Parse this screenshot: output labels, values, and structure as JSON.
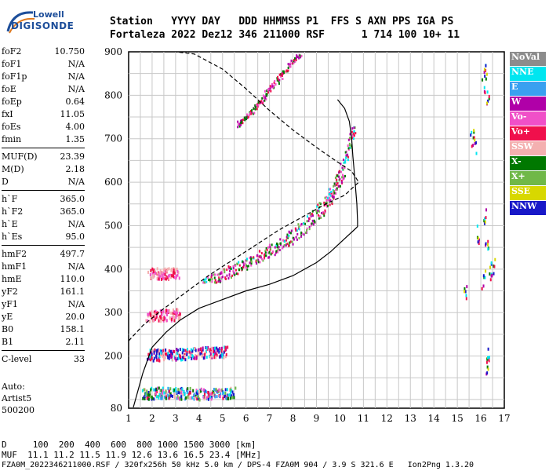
{
  "logo": {
    "line1": "Lowell",
    "line2": "DIGISONDE"
  },
  "header": {
    "row1": "Station   YYYY DAY   DDD HHMMSS P1  FFS S AXN PPS IGA PS",
    "row2": "Fortaleza 2022 Dez12 346 211000 RSF      1 714 100 10+ 11"
  },
  "params_group1": [
    {
      "name": "foF2",
      "value": "10.750"
    },
    {
      "name": "foF1",
      "value": "N/A"
    },
    {
      "name": "foF1p",
      "value": "N/A"
    },
    {
      "name": "foE",
      "value": "N/A"
    },
    {
      "name": "foEp",
      "value": "0.64"
    },
    {
      "name": "fxI",
      "value": "11.05"
    },
    {
      "name": "foEs",
      "value": "4.00"
    },
    {
      "name": "fmin",
      "value": "1.35"
    }
  ],
  "params_group2": [
    {
      "name": "MUF(D)",
      "value": "23.39"
    },
    {
      "name": "M(D)",
      "value": "2.18"
    },
    {
      "name": "D",
      "value": "N/A"
    }
  ],
  "params_group3": [
    {
      "name": "h`F",
      "value": "365.0"
    },
    {
      "name": "h`F2",
      "value": "365.0"
    },
    {
      "name": "h`E",
      "value": "N/A"
    },
    {
      "name": "h`Es",
      "value": "95.0"
    }
  ],
  "params_group4": [
    {
      "name": "hmF2",
      "value": "497.7"
    },
    {
      "name": "hmF1",
      "value": "N/A"
    },
    {
      "name": "hmE",
      "value": "110.0"
    },
    {
      "name": "yF2",
      "value": "161.1"
    },
    {
      "name": "yF1",
      "value": "N/A"
    },
    {
      "name": "yE",
      "value": "20.0"
    },
    {
      "name": "B0",
      "value": "158.1"
    },
    {
      "name": "B1",
      "value": "2.11"
    }
  ],
  "params_group5": [
    {
      "name": "C-level",
      "value": "33"
    }
  ],
  "auto": {
    "line1": "Auto:",
    "line2": "Artist5",
    "line3": "500200"
  },
  "legend": [
    {
      "label": "NoVal",
      "color": "#8c8c8c"
    },
    {
      "label": "NNE",
      "color": "#00e6f0"
    },
    {
      "label": "E",
      "color": "#3aa0f0"
    },
    {
      "label": "W",
      "color": "#b000a8"
    },
    {
      "label": "Vo-",
      "color": "#f050c8"
    },
    {
      "label": "Vo+",
      "color": "#f0104c"
    },
    {
      "label": "SSW",
      "color": "#f4b0b0"
    },
    {
      "label": "X-",
      "color": "#007800"
    },
    {
      "label": "X+",
      "color": "#70b848"
    },
    {
      "label": "SSE",
      "color": "#d8d800"
    },
    {
      "label": "NNW",
      "color": "#1818c8"
    }
  ],
  "footer": {
    "d_row": "D     100  200  400  600  800 1000 1500 3000 [km]",
    "muf_row": "MUF  11.1 11.2 11.5 11.9 12.6 13.6 16.5 23.4 [MHz]",
    "file_row": "FZA0M_2022346211000.RSF / 320fx256h 50 kHz 5.0 km / DPS-4 FZA0M 904 / 3.9 S 321.6 E   Ion2Png 1.3.20"
  },
  "chart_data": {
    "type": "scatter",
    "title": "",
    "xlabel": "",
    "ylabel": "",
    "xlim": [
      1,
      17
    ],
    "ylim": [
      80,
      900
    ],
    "x_ticks": [
      1,
      2,
      3,
      4,
      5,
      6,
      7,
      8,
      9,
      10,
      11,
      12,
      13,
      14,
      15,
      16,
      17
    ],
    "y_ticks": [
      80,
      200,
      300,
      400,
      500,
      600,
      700,
      800,
      900
    ],
    "grid": true,
    "series": [
      {
        "style": "solid",
        "points": [
          [
            1.2,
            82
          ],
          [
            1.6,
            160
          ],
          [
            2.0,
            220
          ],
          [
            2.6,
            255
          ],
          [
            3.2,
            283
          ],
          [
            4.0,
            310
          ],
          [
            5.0,
            330
          ],
          [
            6.0,
            350
          ],
          [
            7.0,
            365
          ],
          [
            8.0,
            385
          ],
          [
            9.0,
            415
          ],
          [
            9.6,
            440
          ],
          [
            10.2,
            470
          ],
          [
            10.6,
            490
          ],
          [
            10.75,
            497.7
          ],
          [
            10.75,
            510
          ],
          [
            10.72,
            550
          ],
          [
            10.66,
            590
          ],
          [
            10.6,
            630
          ],
          [
            10.55,
            660
          ],
          [
            10.5,
            700
          ],
          [
            10.4,
            740
          ],
          [
            10.2,
            770
          ],
          [
            9.9,
            790
          ]
        ]
      },
      {
        "style": "dashed",
        "points": [
          [
            1.0,
            235
          ],
          [
            1.6,
            270
          ],
          [
            2.4,
            305
          ],
          [
            3.4,
            345
          ],
          [
            4.4,
            385
          ],
          [
            5.4,
            420
          ],
          [
            6.4,
            455
          ],
          [
            7.4,
            490
          ],
          [
            8.4,
            520
          ],
          [
            9.4,
            550
          ],
          [
            10.2,
            570
          ],
          [
            10.8,
            600
          ],
          [
            10.5,
            625
          ],
          [
            9.8,
            650
          ],
          [
            9.0,
            680
          ],
          [
            8.0,
            720
          ],
          [
            7.0,
            765
          ],
          [
            6.0,
            815
          ],
          [
            5.0,
            860
          ],
          [
            3.8,
            895
          ],
          [
            3.0,
            900
          ]
        ]
      }
    ],
    "echoes": [
      {
        "label": "F2 O-trace",
        "points": [
          [
            4.1,
            370
          ],
          [
            4.6,
            385
          ],
          [
            5.2,
            400
          ],
          [
            5.8,
            415
          ],
          [
            6.4,
            430
          ],
          [
            7.0,
            448
          ],
          [
            7.6,
            470
          ],
          [
            8.2,
            495
          ],
          [
            8.8,
            525
          ],
          [
            9.3,
            555
          ],
          [
            9.7,
            590
          ],
          [
            10.0,
            625
          ],
          [
            10.25,
            660
          ],
          [
            10.45,
            700
          ],
          [
            10.6,
            730
          ]
        ]
      },
      {
        "label": "F2 X-trace",
        "points": [
          [
            4.6,
            368
          ],
          [
            5.1,
            382
          ],
          [
            5.7,
            398
          ],
          [
            6.3,
            414
          ],
          [
            6.9,
            430
          ],
          [
            7.5,
            448
          ],
          [
            8.1,
            470
          ],
          [
            8.7,
            497
          ],
          [
            9.2,
            528
          ],
          [
            9.6,
            560
          ],
          [
            9.9,
            590
          ],
          [
            10.15,
            620
          ]
        ]
      },
      {
        "label": "F2 second hop",
        "points": [
          [
            5.6,
            730
          ],
          [
            5.9,
            745
          ],
          [
            6.2,
            760
          ],
          [
            6.5,
            780
          ],
          [
            6.8,
            800
          ],
          [
            7.1,
            820
          ],
          [
            7.4,
            840
          ],
          [
            7.7,
            860
          ],
          [
            8.0,
            880
          ],
          [
            8.3,
            895
          ]
        ]
      },
      {
        "label": "Es",
        "points": [
          [
            1.6,
            110
          ],
          [
            2.0,
            112
          ],
          [
            2.5,
            112
          ],
          [
            3.0,
            111
          ],
          [
            3.5,
            112
          ],
          [
            4.0,
            110
          ],
          [
            4.5,
            111
          ],
          [
            5.0,
            113
          ],
          [
            5.5,
            112
          ]
        ]
      },
      {
        "label": "Es multiple",
        "points": [
          [
            1.8,
            200
          ],
          [
            2.3,
            200
          ],
          [
            2.8,
            201
          ],
          [
            3.3,
            202
          ],
          [
            3.8,
            205
          ],
          [
            4.3,
            206
          ],
          [
            4.8,
            207
          ],
          [
            5.2,
            207
          ]
        ]
      },
      {
        "label": "Es third",
        "points": [
          [
            1.8,
            290
          ],
          [
            2.3,
            290
          ],
          [
            2.8,
            292
          ],
          [
            3.2,
            293
          ]
        ]
      },
      {
        "label": "Es fourth",
        "points": [
          [
            1.9,
            387
          ],
          [
            2.3,
            387
          ],
          [
            2.7,
            388
          ],
          [
            3.1,
            390
          ]
        ]
      }
    ]
  }
}
